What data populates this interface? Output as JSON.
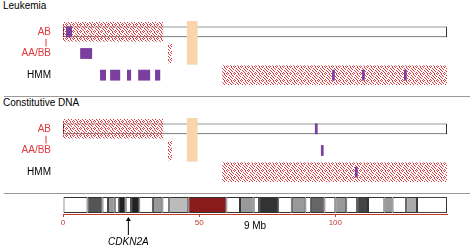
{
  "chart_data": {
    "type": "genome_tracks",
    "xlim": [
      0,
      141
    ],
    "xticks": [
      0,
      50,
      100
    ],
    "xlabel": "9 Mb",
    "panels": [
      {
        "title": "Leukemia",
        "tracks": [
          {
            "name": "AB",
            "color": "#e0393e",
            "segments": [
              [
                0,
                36.8
              ],
              [
                38.6,
                40
              ],
              [
                58.5,
                141
              ]
            ]
          },
          {
            "name": "AA/BB",
            "color": "#8fd0dc",
            "segments": [
              [
                0,
                36.8
              ],
              [
                38.6,
                40
              ],
              [
                58.5,
                141
              ]
            ]
          }
        ],
        "masked": {
          "color": "#f9d5ae",
          "segments": [
            [
              45.6,
              49.3
            ]
          ]
        },
        "hmm": {
          "name": "HMM",
          "color": "#7b3fa0",
          "segments": [
            [
              1.1,
              3.3
            ],
            [
              6.3,
              10.7
            ],
            [
              13.6,
              15.8
            ],
            [
              17.3,
              21
            ],
            [
              23.5,
              25
            ],
            [
              27.6,
              32
            ],
            [
              33.8,
              35.7
            ],
            [
              98.8,
              99.8
            ],
            [
              109.8,
              110.8
            ],
            [
              125.2,
              126.2
            ]
          ]
        }
      },
      {
        "title": "Constitutive DNA",
        "tracks": [
          {
            "name": "AB",
            "color": "#e0393e",
            "segments": [
              [
                0,
                36.8
              ],
              [
                38.6,
                40
              ],
              [
                58.5,
                141
              ]
            ]
          },
          {
            "name": "AA/BB",
            "color": "#8fd0dc",
            "segments": [
              [
                0,
                36.8
              ],
              [
                38.6,
                40
              ],
              [
                58.5,
                141
              ]
            ]
          }
        ],
        "masked": {
          "color": "#f9d5ae",
          "segments": [
            [
              45.6,
              49.3
            ]
          ]
        },
        "hmm": {
          "name": "HMM",
          "color": "#7b3fa0",
          "segments": [
            [
              92.5,
              93.5
            ],
            [
              94.7,
              95.7
            ],
            [
              107.2,
              108.2
            ]
          ]
        }
      }
    ],
    "ideogram": {
      "bands": [
        {
          "start": 0,
          "end": 9,
          "color": "#ffffff"
        },
        {
          "start": 9,
          "end": 14.5,
          "color": "#555555"
        },
        {
          "start": 14.5,
          "end": 16.5,
          "color": "#ffffff"
        },
        {
          "start": 16.5,
          "end": 19,
          "color": "#999999"
        },
        {
          "start": 19,
          "end": 20.5,
          "color": "#ffffff"
        },
        {
          "start": 20.5,
          "end": 23,
          "color": "#222222"
        },
        {
          "start": 23,
          "end": 25,
          "color": "#ffffff"
        },
        {
          "start": 25,
          "end": 28,
          "color": "#222222"
        },
        {
          "start": 28,
          "end": 33,
          "color": "#ffffff"
        },
        {
          "start": 33,
          "end": 36.5,
          "color": "#999999"
        },
        {
          "start": 36.5,
          "end": 39,
          "color": "#ffffff"
        },
        {
          "start": 39,
          "end": 46,
          "color": "#bbbbbb"
        },
        {
          "start": 46,
          "end": 60,
          "color": "#8b1a1a"
        },
        {
          "start": 60,
          "end": 65,
          "color": "#ffffff"
        },
        {
          "start": 65,
          "end": 70,
          "color": "#999999"
        },
        {
          "start": 70,
          "end": 72,
          "color": "#ffffff"
        },
        {
          "start": 72,
          "end": 79,
          "color": "#333333"
        },
        {
          "start": 79,
          "end": 84,
          "color": "#ffffff"
        },
        {
          "start": 84,
          "end": 89,
          "color": "#999999"
        },
        {
          "start": 89,
          "end": 91,
          "color": "#ffffff"
        },
        {
          "start": 91,
          "end": 96,
          "color": "#666666"
        },
        {
          "start": 96,
          "end": 100,
          "color": "#ffffff"
        },
        {
          "start": 100,
          "end": 104,
          "color": "#999999"
        },
        {
          "start": 104,
          "end": 108,
          "color": "#ffffff"
        },
        {
          "start": 108,
          "end": 112,
          "color": "#444444"
        },
        {
          "start": 112,
          "end": 118,
          "color": "#ffffff"
        },
        {
          "start": 118,
          "end": 121,
          "color": "#999999"
        },
        {
          "start": 121,
          "end": 126,
          "color": "#ffffff"
        },
        {
          "start": 126,
          "end": 130,
          "color": "#aaaaaa"
        },
        {
          "start": 130,
          "end": 141,
          "color": "#ffffff"
        }
      ]
    },
    "annotations": [
      {
        "text": "CDKN2A",
        "x": 24
      }
    ]
  }
}
